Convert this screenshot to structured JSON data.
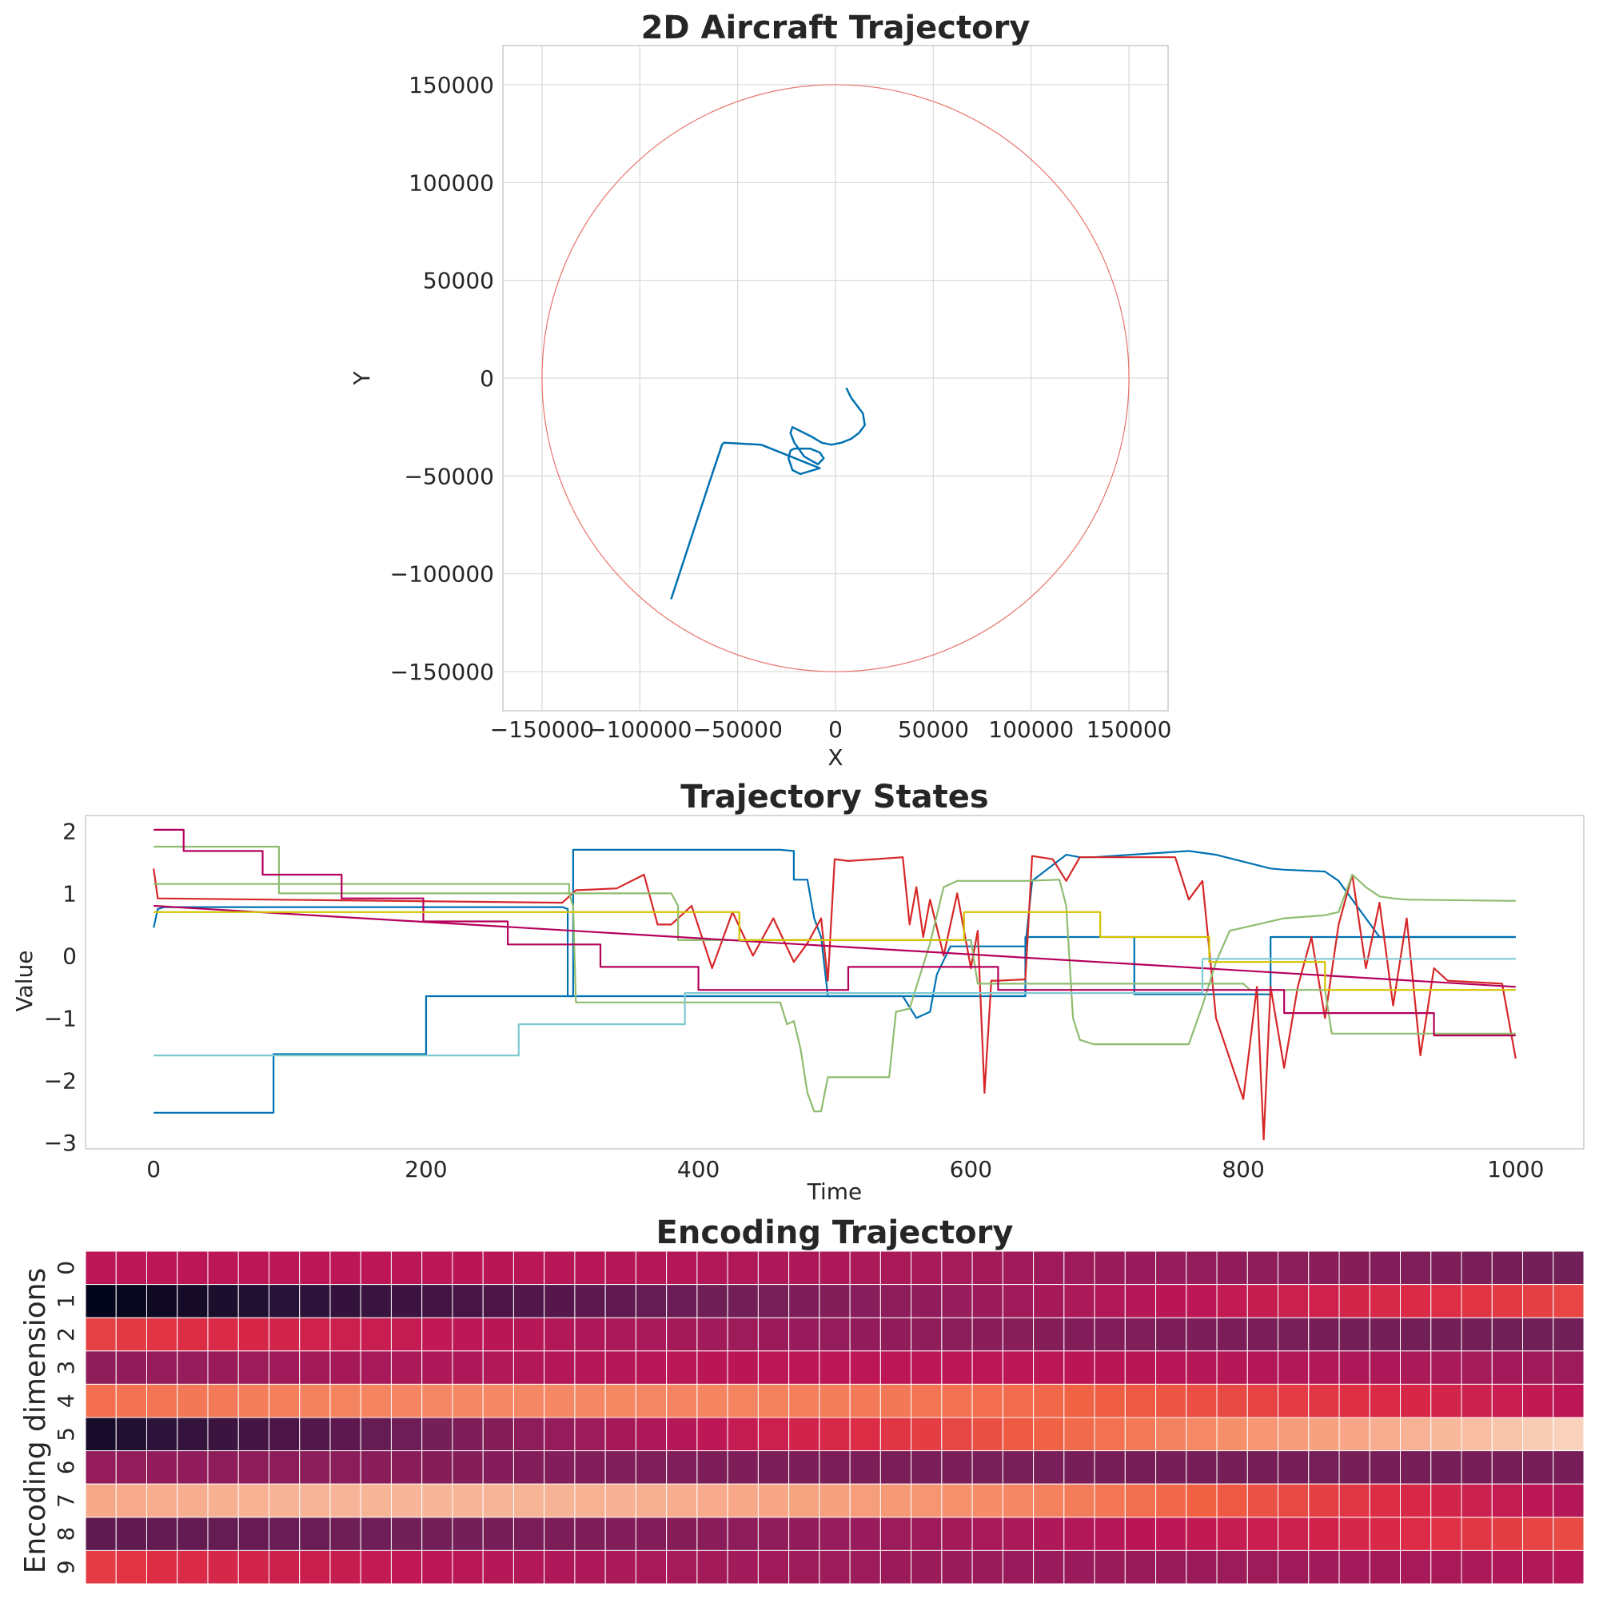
{
  "figure": {
    "traj_color": "#0072b2",
    "circle_color": "#e8736c",
    "grid_color": "#d9d9d9",
    "spine_color": "#cccccc"
  },
  "chart_data": [
    {
      "type": "line",
      "title": "2D Aircraft Trajectory",
      "xlabel": "X",
      "ylabel": "Y",
      "xlim": [
        -170000,
        170000
      ],
      "ylim": [
        -170000,
        170000
      ],
      "xticks": [
        -150000,
        -100000,
        -50000,
        0,
        50000,
        100000,
        150000
      ],
      "yticks": [
        -150000,
        -100000,
        -50000,
        0,
        50000,
        100000,
        150000
      ],
      "xtick_labels": [
        "−150000",
        "−100000",
        "−50000",
        "0",
        "50000",
        "100000",
        "150000"
      ],
      "ytick_labels": [
        "−150000",
        "−100000",
        "−50000",
        "0",
        "50000",
        "100000",
        "150000"
      ],
      "grid": true,
      "boundary_circle": {
        "cx": 0,
        "cy": 0,
        "r": 150000,
        "color": "#e8736c"
      },
      "series": [
        {
          "color": "#0072b2",
          "x": [
            5500,
            8000,
            11000,
            14000,
            15000,
            12000,
            8000,
            3000,
            -2000,
            -7000,
            -12000,
            -18000,
            -22000,
            -23000,
            -21000,
            -16000,
            -9000,
            -6000,
            -8000,
            -13000,
            -17000,
            -21000,
            -23000,
            -24000,
            -22000,
            -18000,
            -8000,
            -38000,
            -57000,
            -58000,
            -65000,
            -84000
          ],
          "y": [
            -5000,
            -10000,
            -14000,
            -18000,
            -24000,
            -28000,
            -31000,
            -33000,
            -34000,
            -33000,
            -30000,
            -27000,
            -25000,
            -28000,
            -33000,
            -40000,
            -44000,
            -41000,
            -38000,
            -36000,
            -36000,
            -36000,
            -37000,
            -41000,
            -47000,
            -49000,
            -46000,
            -34000,
            -33000,
            -34000,
            -55000,
            -113000
          ]
        }
      ]
    },
    {
      "type": "line",
      "title": "Trajectory States",
      "xlabel": "Time",
      "ylabel": "Value",
      "xlim": [
        -50,
        1050
      ],
      "ylim": [
        -3.1,
        2.25
      ],
      "xticks": [
        0,
        200,
        400,
        600,
        800,
        1000
      ],
      "yticks": [
        -3,
        -2,
        -1,
        0,
        1,
        2
      ],
      "xtick_labels": [
        "0",
        "200",
        "400",
        "600",
        "800",
        "1000"
      ],
      "ytick_labels": [
        "−3",
        "−2",
        "−1",
        "0",
        "1",
        "2"
      ],
      "series": [
        {
          "color": "#0072b2",
          "x": [
            0,
            88,
            88,
            200,
            200,
            300,
            308,
            308,
            460,
            470,
            470,
            480,
            485,
            490,
            495,
            495,
            550,
            560,
            570,
            575,
            585,
            585,
            640,
            645,
            645,
            670,
            680,
            690,
            760,
            780,
            820,
            830,
            860,
            870,
            900,
            1000
          ],
          "y": [
            -2.52,
            -2.52,
            -1.58,
            -1.58,
            -0.65,
            -0.65,
            -0.65,
            1.7,
            1.7,
            1.68,
            1.22,
            1.22,
            0.6,
            0.3,
            -0.65,
            -0.65,
            -0.65,
            -1.0,
            -0.9,
            -0.3,
            0.15,
            0.15,
            0.15,
            1.2,
            1.2,
            1.62,
            1.58,
            1.58,
            1.68,
            1.62,
            1.4,
            1.38,
            1.35,
            1.2,
            0.3,
            0.3
          ]
        },
        {
          "color": "#0072b2",
          "x": [
            0,
            3,
            8,
            300,
            304,
            304,
            640,
            640,
            720,
            720,
            820,
            820,
            1000
          ],
          "y": [
            0.45,
            0.75,
            0.78,
            0.78,
            0.75,
            -0.65,
            -0.65,
            0.3,
            0.3,
            -0.62,
            -0.62,
            0.3,
            0.3
          ]
        },
        {
          "color": "#d62728",
          "x": [
            0,
            3,
            300,
            310,
            340,
            360,
            370,
            380,
            395,
            410,
            425,
            440,
            455,
            470,
            480,
            490,
            495,
            500,
            510,
            530,
            550,
            555,
            560,
            565,
            570,
            580,
            590,
            600,
            605,
            610,
            615,
            620,
            640,
            645,
            660,
            670,
            680,
            750,
            760,
            770,
            780,
            800,
            810,
            815,
            820,
            830,
            840,
            850,
            860,
            870,
            880,
            890,
            900,
            910,
            920,
            930,
            940,
            950,
            990,
            1000
          ],
          "y": [
            1.4,
            0.92,
            0.85,
            1.05,
            1.08,
            1.3,
            0.5,
            0.5,
            0.8,
            -0.2,
            0.7,
            0.0,
            0.6,
            -0.1,
            0.2,
            0.6,
            -0.4,
            1.55,
            1.52,
            1.55,
            1.58,
            0.5,
            1.1,
            0.3,
            0.9,
            0.0,
            1.0,
            -0.2,
            0.4,
            -2.2,
            -0.4,
            -0.4,
            -0.38,
            1.6,
            1.55,
            1.2,
            1.58,
            1.58,
            0.9,
            1.2,
            -1.0,
            -2.3,
            -0.5,
            -2.95,
            -0.5,
            -1.8,
            -0.5,
            0.3,
            -1.0,
            0.5,
            1.3,
            -0.2,
            0.85,
            -0.8,
            0.6,
            -1.6,
            -0.2,
            -0.4,
            -0.45,
            -1.65
          ]
        },
        {
          "color": "#8fbc6f",
          "x": [
            0,
            92,
            92,
            305,
            308,
            310,
            460,
            465,
            470,
            475,
            480,
            485,
            490,
            495,
            540,
            545,
            555,
            560,
            570,
            580,
            590,
            640,
            665,
            670,
            675,
            680,
            690,
            700,
            760,
            770,
            780,
            790,
            830,
            860,
            870,
            880,
            890,
            900,
            910,
            920,
            1000
          ],
          "y": [
            1.75,
            1.75,
            1.0,
            1.0,
            0.8,
            -0.75,
            -0.75,
            -1.1,
            -1.05,
            -1.5,
            -2.2,
            -2.5,
            -2.5,
            -1.95,
            -1.95,
            -0.9,
            -0.85,
            -0.5,
            0.2,
            1.1,
            1.2,
            1.2,
            1.22,
            0.8,
            -1.0,
            -1.35,
            -1.42,
            -1.42,
            -1.42,
            -0.8,
            -0.1,
            0.4,
            0.6,
            0.65,
            0.7,
            1.3,
            1.1,
            0.95,
            0.92,
            0.9,
            0.88
          ]
        },
        {
          "color": "#8fbc6f",
          "x": [
            0,
            305,
            305,
            380,
            385,
            385,
            600,
            605,
            800,
            805,
            860,
            865,
            1000
          ],
          "y": [
            1.15,
            1.15,
            1.0,
            1.0,
            0.8,
            0.25,
            0.25,
            -0.45,
            -0.45,
            -0.55,
            -0.55,
            -1.25,
            -1.25
          ]
        },
        {
          "color": "#b5005b",
          "x": [
            0,
            22,
            22,
            80,
            80,
            138,
            138,
            198,
            198,
            260,
            260,
            328,
            328,
            400,
            400,
            510,
            510,
            620,
            620,
            770,
            770,
            830,
            830,
            940,
            940,
            1000
          ],
          "y": [
            2.02,
            2.02,
            1.68,
            1.68,
            1.3,
            1.3,
            0.92,
            0.92,
            0.55,
            0.55,
            0.18,
            0.18,
            -0.18,
            -0.18,
            -0.55,
            -0.55,
            -0.18,
            -0.18,
            -0.55,
            -0.55,
            -0.55,
            -0.55,
            -0.92,
            -0.92,
            -1.28,
            -1.28
          ]
        },
        {
          "color": "#b5005b",
          "x": [
            0,
            1000
          ],
          "y": [
            0.8,
            -0.5
          ]
        },
        {
          "color": "#d4c200",
          "x": [
            0,
            430,
            430,
            595,
            595,
            695,
            695,
            775,
            775,
            860,
            860,
            1000
          ],
          "y": [
            0.7,
            0.7,
            0.25,
            0.25,
            0.7,
            0.7,
            0.3,
            0.3,
            -0.1,
            -0.1,
            -0.55,
            -0.55
          ]
        },
        {
          "color": "#7ec8d0",
          "x": [
            0,
            268,
            268,
            390,
            390,
            770,
            770,
            1000
          ],
          "y": [
            -1.6,
            -1.6,
            -1.1,
            -1.1,
            -0.6,
            -0.6,
            -0.05,
            -0.05
          ]
        }
      ]
    },
    {
      "type": "heatmap",
      "title": "Encoding Trajectory",
      "ylabel": "Encoding dimensions",
      "row_labels": [
        "0",
        "1",
        "2",
        "3",
        "4",
        "5",
        "6",
        "7",
        "8",
        "9"
      ],
      "n_cols": 49,
      "palette": [
        "#03051a",
        "#2b1339",
        "#4d1548",
        "#701f57",
        "#951c5b",
        "#bc1656",
        "#dd2c45",
        "#f06043",
        "#f6906b",
        "#f7b89c",
        "#faebdd"
      ],
      "start": [
        0.5,
        0.0,
        0.64,
        0.38,
        0.73,
        0.05,
        0.4,
        0.86,
        0.25,
        0.63
      ],
      "end": [
        0.3,
        0.65,
        0.3,
        0.42,
        0.5,
        0.95,
        0.32,
        0.48,
        0.66,
        0.48
      ],
      "mid": [
        0.46,
        0.35,
        0.4,
        0.5,
        0.76,
        0.58,
        0.33,
        0.84,
        0.4,
        0.42
      ]
    }
  ]
}
